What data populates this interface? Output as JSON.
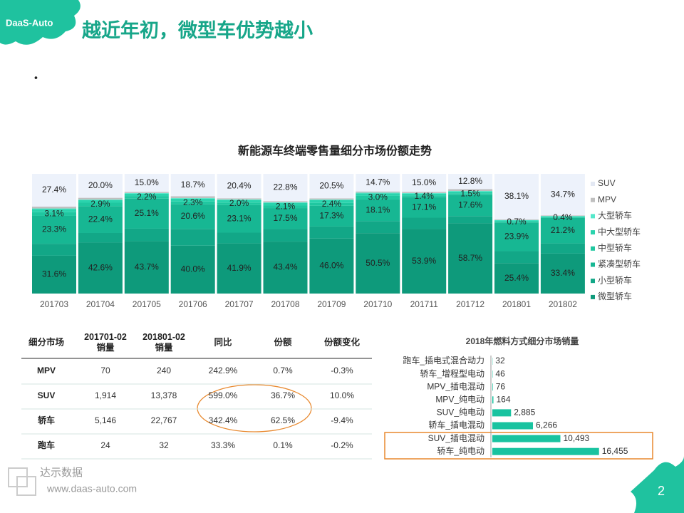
{
  "logo": "DaaS-Auto",
  "title": "越近年初，微型车优势越小",
  "bullet": "•",
  "chart_data": [
    {
      "type": "stacked_bar",
      "title": "新能源车终端零售量细分市场份额走势",
      "categories": [
        "201703",
        "201704",
        "201705",
        "201706",
        "201707",
        "201708",
        "201709",
        "201710",
        "201711",
        "201712",
        "201801",
        "201802"
      ],
      "ylim": [
        0,
        100
      ],
      "legend": "right",
      "series": [
        {
          "name": "微型轿车",
          "color": "#0e9a7b",
          "values": [
            31.6,
            42.6,
            43.7,
            40.0,
            41.9,
            43.4,
            46.0,
            50.5,
            53.9,
            58.7,
            25.4,
            33.4
          ],
          "value_labels": [
            "31.6%",
            "42.6%",
            "43.7%",
            "40.0%",
            "41.9%",
            "43.4%",
            "46.0%",
            "50.5%",
            "53.9%",
            "58.7%",
            "25.4%",
            "33.4%"
          ]
        },
        {
          "name": "小型轿车",
          "color": "#12a787",
          "values": [
            10.0,
            8.0,
            10.5,
            14.0,
            9.0,
            10.5,
            10.0,
            10.0,
            9.5,
            6.0,
            10.0,
            8.5
          ]
        },
        {
          "name": "紧凑型轿车",
          "color": "#17b793",
          "values": [
            23.3,
            22.4,
            25.1,
            20.6,
            23.1,
            17.5,
            17.3,
            18.1,
            17.1,
            17.6,
            23.9,
            21.2
          ],
          "value_labels": [
            "23.3%",
            "22.4%",
            "25.1%",
            "20.6%",
            "23.1%",
            "17.5%",
            "17.3%",
            "18.1%",
            "17.1%",
            "17.6%",
            "23.9%",
            "21.2%"
          ]
        },
        {
          "name": "中型轿车",
          "color": "#1fc7a0",
          "values": [
            3.1,
            2.9,
            2.2,
            2.3,
            2.0,
            2.1,
            2.4,
            3.0,
            1.4,
            1.5,
            0.7,
            0.4
          ],
          "value_labels": [
            "3.1%",
            "2.9%",
            "2.2%",
            "2.3%",
            "2.0%",
            "2.1%",
            "2.4%",
            "3.0%",
            "1.4%",
            "1.5%",
            "0.7%",
            "0.4%"
          ]
        },
        {
          "name": "中大型轿车",
          "color": "#2ad3ad",
          "values": [
            2.6,
            2.1,
            2.0,
            2.4,
            2.1,
            2.2,
            2.3,
            2.2,
            1.6,
            1.4,
            1.0,
            1.0
          ]
        },
        {
          "name": "大型轿车",
          "color": "#55e8cb",
          "values": [
            0.5,
            0.5,
            0.5,
            0.5,
            0.5,
            0.5,
            0.5,
            0.5,
            0.5,
            0.5,
            0.4,
            0.3
          ]
        },
        {
          "name": "MPV",
          "color": "#bfbfbf",
          "values": [
            1.5,
            1.5,
            1.0,
            1.5,
            1.0,
            1.0,
            1.0,
            1.0,
            1.0,
            1.5,
            0.5,
            0.5
          ]
        },
        {
          "name": "SUV",
          "color": "#edf2fb",
          "values": [
            27.4,
            20.0,
            15.0,
            18.7,
            20.4,
            22.8,
            20.5,
            14.7,
            15.0,
            12.8,
            38.1,
            34.7
          ],
          "value_labels": [
            "27.4%",
            "20.0%",
            "15.0%",
            "18.7%",
            "20.4%",
            "22.8%",
            "20.5%",
            "14.7%",
            "15.0%",
            "12.8%",
            "38.1%",
            "34.7%"
          ]
        }
      ]
    },
    {
      "type": "barh",
      "title": "2018年燃料方式细分市场销量",
      "categories": [
        "跑车_插电式混合动力",
        "轿车_增程型电动",
        "MPV_插电混动",
        "MPV_纯电动",
        "SUV_纯电动",
        "轿车_插电混动",
        "SUV_插电混动",
        "轿车_纯电动"
      ],
      "values": [
        32,
        46,
        76,
        164,
        2885,
        6266,
        10493,
        16455
      ],
      "value_labels": [
        "32",
        "46",
        "76",
        "164",
        "2,885",
        "6,266",
        "10,493",
        "16,455"
      ],
      "color": "#19c3a0",
      "xlim": [
        0,
        20000
      ]
    }
  ],
  "table": {
    "header": [
      "细分市场",
      "201701-02\n销量",
      "201801-02\n销量",
      "同比",
      "份额",
      "份额变化"
    ],
    "rows": [
      [
        "MPV",
        "70",
        "240",
        "242.9%",
        "0.7%",
        "-0.3%"
      ],
      [
        "SUV",
        "1,914",
        "13,378",
        "599.0%",
        "36.7%",
        "10.0%"
      ],
      [
        "轿车",
        "5,146",
        "22,767",
        "342.4%",
        "62.5%",
        "-9.4%"
      ],
      [
        "跑车",
        "24",
        "32",
        "33.3%",
        "0.1%",
        "-0.2%"
      ]
    ]
  },
  "footer": {
    "brand": "达示数据",
    "url": "www.daas-auto.com",
    "page": "2"
  }
}
